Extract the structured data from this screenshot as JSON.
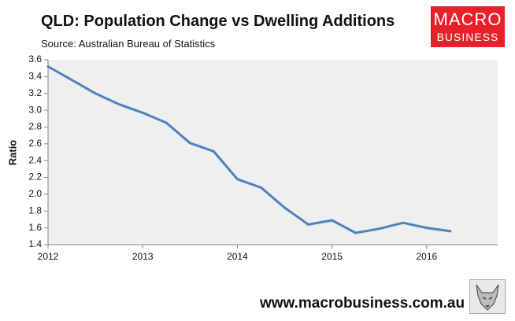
{
  "header": {
    "title": "QLD: Population Change vs Dwelling Additions",
    "source": "Source: Australian Bureau of Statistics"
  },
  "logo": {
    "line1": "MACRO",
    "line2": "BUSINESS",
    "bg_color": "#e8202a",
    "icon": "wolf-icon"
  },
  "footer": {
    "url": "www.macrobusiness.com.au"
  },
  "chart_data": {
    "type": "line",
    "title": "QLD: Population Change vs Dwelling Additions",
    "xlabel": "",
    "ylabel": "Ratio",
    "xlim": [
      2012,
      2016.75
    ],
    "ylim": [
      1.4,
      3.6
    ],
    "grid": false,
    "legend": "none",
    "plot_bg": "#efefef",
    "x_ticks": [
      2012,
      2013,
      2014,
      2015,
      2016
    ],
    "y_ticks": [
      1.4,
      1.6,
      1.8,
      2.0,
      2.2,
      2.4,
      2.6,
      2.8,
      3.0,
      3.2,
      3.4,
      3.6
    ],
    "series": [
      {
        "name": "Ratio",
        "color": "#4f81bd",
        "x": [
          2012.0,
          2012.25,
          2012.5,
          2012.75,
          2013.0,
          2013.25,
          2013.5,
          2013.75,
          2014.0,
          2014.25,
          2014.5,
          2014.75,
          2015.0,
          2015.25,
          2015.5,
          2015.75,
          2016.0,
          2016.25
        ],
        "y": [
          3.52,
          3.36,
          3.2,
          3.07,
          2.97,
          2.85,
          2.61,
          2.51,
          2.18,
          2.08,
          1.84,
          1.64,
          1.69,
          1.54,
          1.59,
          1.66,
          1.6,
          1.56
        ]
      }
    ]
  }
}
